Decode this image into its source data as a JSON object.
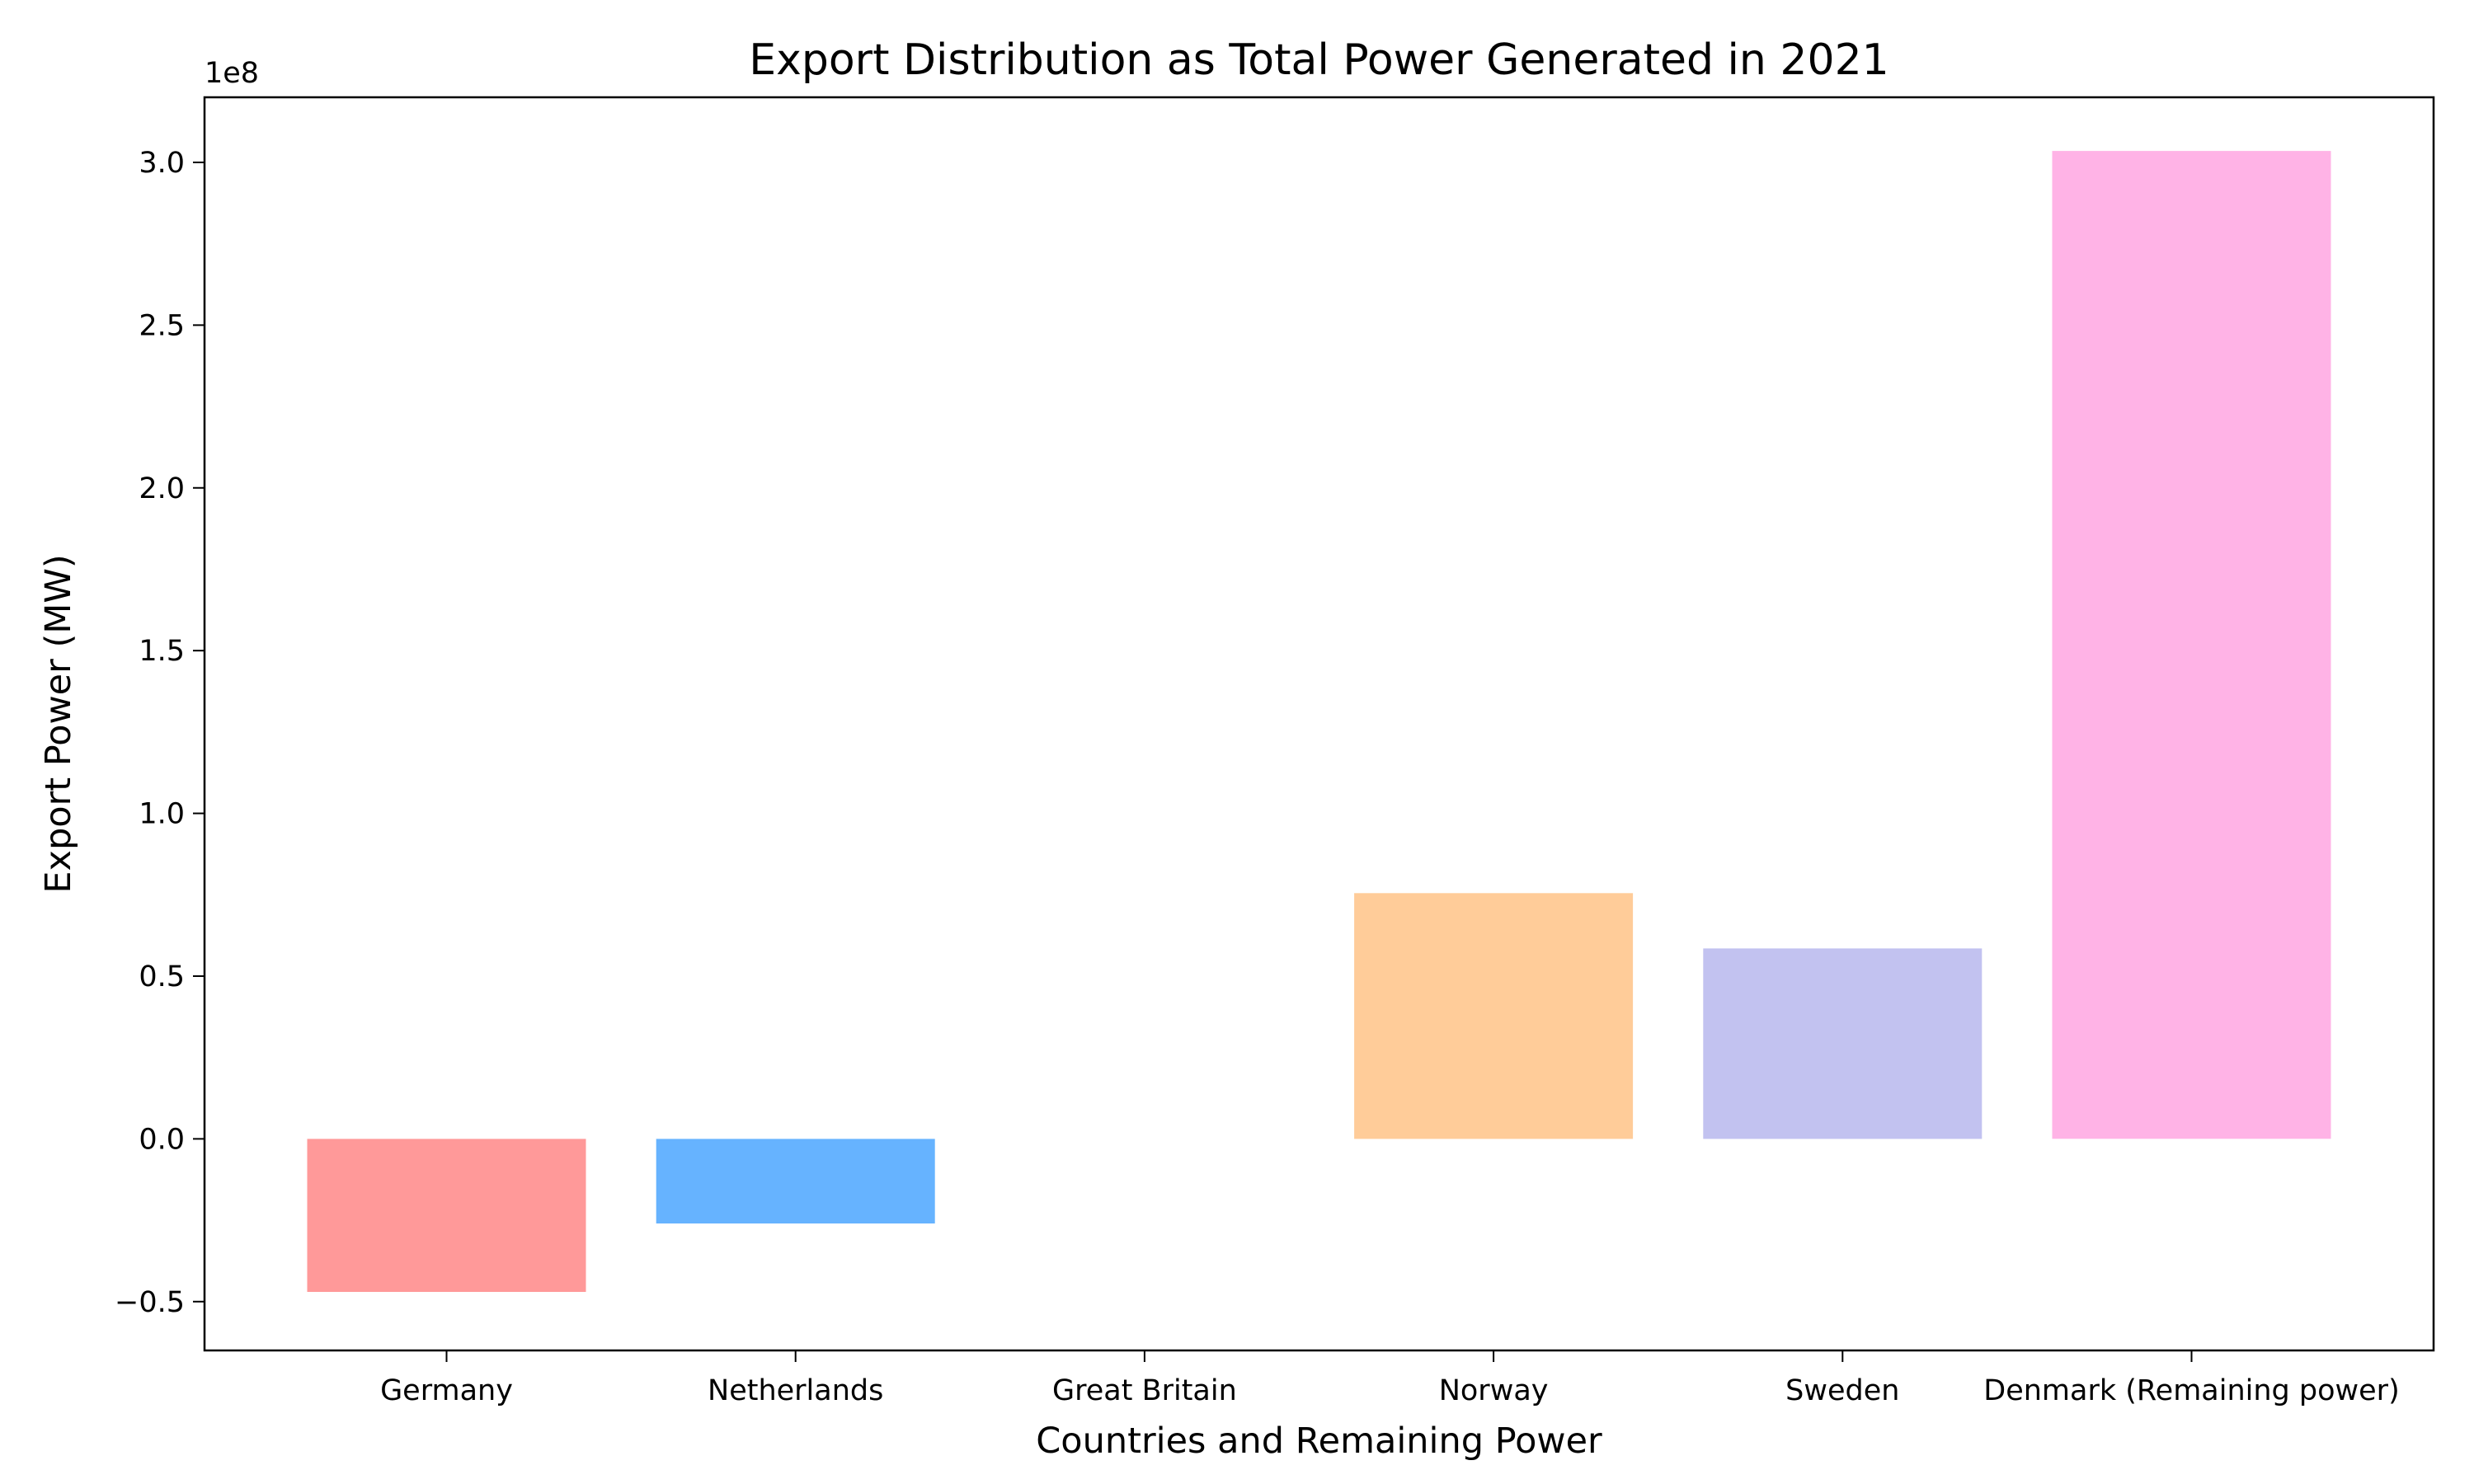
{
  "chart_data": {
    "type": "bar",
    "title": "Export Distribution as Total Power Generated in 2021",
    "xlabel": "Countries and Remaining Power",
    "ylabel": "Export Power (MW)",
    "offset_label": "1e8",
    "categories": [
      "Germany",
      "Netherlands",
      "Great Britain",
      "Norway",
      "Sweden",
      "Denmark (Remaining power)"
    ],
    "values": [
      -47000000,
      -26000000,
      0,
      75500000,
      58500000,
      303500000
    ],
    "colors": [
      "#ff9999",
      "#66b3ff",
      "#99ff99",
      "#ffcc99",
      "#c2c2f0",
      "#ffb3e6"
    ],
    "ylim": [
      -65000000,
      320000000
    ],
    "yticks": [
      -50000000,
      0,
      50000000,
      100000000,
      150000000,
      200000000,
      250000000,
      300000000
    ],
    "ytick_labels": [
      "−0.5",
      "0.0",
      "0.5",
      "1.0",
      "1.5",
      "2.0",
      "2.5",
      "3.0"
    ],
    "grid": false,
    "legend": "none"
  }
}
